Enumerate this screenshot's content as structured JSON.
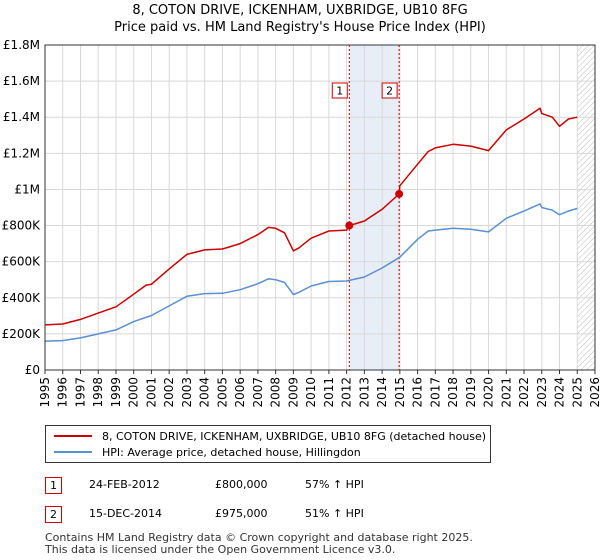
{
  "title_line1": "8, COTON DRIVE, ICKENHAM, UXBRIDGE, UB10 8FG",
  "title_line2": "Price paid vs. HM Land Registry's House Price Index (HPI)",
  "colors": {
    "property": "#cc0000",
    "hpi": "#5b8fd0",
    "shade": "#e8eef8",
    "grid": "#d8d8d8"
  },
  "chart_data": {
    "type": "line",
    "ylim": [
      0,
      1800000
    ],
    "xlim": [
      1995,
      2026
    ],
    "y_ticks": [
      {
        "value": 0,
        "label": "£0"
      },
      {
        "value": 200000,
        "label": "£200K"
      },
      {
        "value": 400000,
        "label": "£400K"
      },
      {
        "value": 600000,
        "label": "£600K"
      },
      {
        "value": 800000,
        "label": "£800K"
      },
      {
        "value": 1000000,
        "label": "£1M"
      },
      {
        "value": 1200000,
        "label": "£1.2M"
      },
      {
        "value": 1400000,
        "label": "£1.4M"
      },
      {
        "value": 1600000,
        "label": "£1.6M"
      },
      {
        "value": 1800000,
        "label": "£1.8M"
      }
    ],
    "x_ticks": [
      "1995",
      "1996",
      "1997",
      "1998",
      "1999",
      "2000",
      "2001",
      "2002",
      "2003",
      "2004",
      "2005",
      "2006",
      "2007",
      "2008",
      "2009",
      "2010",
      "2011",
      "2012",
      "2013",
      "2014",
      "2015",
      "2016",
      "2017",
      "2018",
      "2019",
      "2020",
      "2021",
      "2022",
      "2023",
      "2024",
      "2025",
      "2026"
    ],
    "shaded_period": [
      2012.15,
      2014.96
    ],
    "forecast_start": 2025.0,
    "series": [
      {
        "name": "8, COTON DRIVE, ICKENHAM, UXBRIDGE, UB10 8FG (detached house)",
        "x": [
          1995,
          1996,
          1997,
          1998,
          1999,
          2000,
          2000.7,
          2001,
          2002,
          2003,
          2004,
          2005,
          2006,
          2007,
          2007.6,
          2008,
          2008.5,
          2009,
          2009.3,
          2010,
          2011,
          2012,
          2012.15,
          2013,
          2014,
          2014.96,
          2015,
          2016,
          2016.6,
          2017,
          2018,
          2019,
          2020,
          2021,
          2022,
          2022.9,
          2023,
          2023.6,
          2024,
          2024.5,
          2025
        ],
        "values": [
          250000,
          255000,
          280000,
          315000,
          350000,
          420000,
          470000,
          475000,
          560000,
          640000,
          665000,
          670000,
          700000,
          750000,
          790000,
          785000,
          760000,
          660000,
          675000,
          730000,
          770000,
          775000,
          800000,
          825000,
          890000,
          975000,
          1020000,
          1140000,
          1210000,
          1230000,
          1250000,
          1240000,
          1215000,
          1330000,
          1390000,
          1450000,
          1420000,
          1400000,
          1350000,
          1390000,
          1400000
        ]
      },
      {
        "name": "HPI: Average price, detached house, Hillingdon",
        "x": [
          1995,
          1996,
          1997,
          1998,
          1999,
          2000,
          2001,
          2002,
          2003,
          2004,
          2005,
          2006,
          2007,
          2007.6,
          2008,
          2008.5,
          2009,
          2009.3,
          2010,
          2011,
          2012,
          2013,
          2014,
          2015,
          2016,
          2016.6,
          2017,
          2018,
          2019,
          2020,
          2021,
          2022,
          2022.9,
          2023,
          2023.6,
          2024,
          2024.5,
          2025
        ],
        "values": [
          160000,
          163000,
          178000,
          200000,
          222000,
          268000,
          302000,
          355000,
          408000,
          423000,
          425000,
          445000,
          478000,
          505000,
          500000,
          485000,
          418000,
          430000,
          465000,
          490000,
          493000,
          515000,
          565000,
          625000,
          724000,
          770000,
          775000,
          785000,
          780000,
          765000,
          840000,
          880000,
          920000,
          900000,
          885000,
          860000,
          880000,
          895000
        ]
      }
    ],
    "sales": [
      {
        "label": "1",
        "x": 2012.15,
        "value": 800000
      },
      {
        "label": "2",
        "x": 2014.96,
        "value": 975000
      }
    ]
  },
  "legend": [
    {
      "label": "8, COTON DRIVE, ICKENHAM, UXBRIDGE, UB10 8FG (detached house)"
    },
    {
      "label": "HPI: Average price, detached house, Hillingdon"
    }
  ],
  "annotations": [
    {
      "num": "1",
      "date": "24-FEB-2012",
      "price": "£800,000",
      "hpi": "57% ↑ HPI"
    },
    {
      "num": "2",
      "date": "15-DEC-2014",
      "price": "£975,000",
      "hpi": "51% ↑ HPI"
    }
  ],
  "footer_line1": "Contains HM Land Registry data © Crown copyright and database right 2025.",
  "footer_line2": "This data is licensed under the Open Government Licence v3.0."
}
